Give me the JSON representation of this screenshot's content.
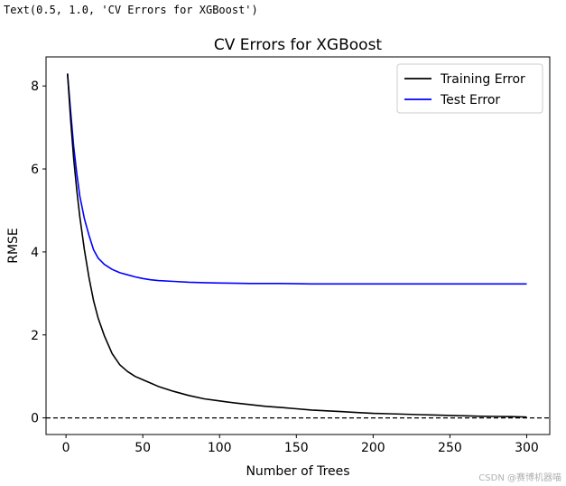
{
  "output_line": "Text(0.5, 1.0, 'CV Errors for XGBoost')",
  "watermark": "CSDN @赛博机器喵",
  "chart_data": {
    "type": "line",
    "title": "CV Errors for XGBoost",
    "xlabel": "Number of Trees",
    "ylabel": "RMSE",
    "xlim": [
      -13,
      315
    ],
    "ylim": [
      -0.4,
      8.7
    ],
    "xticks": [
      0,
      50,
      100,
      150,
      200,
      250,
      300
    ],
    "yticks": [
      0,
      2,
      4,
      6,
      8
    ],
    "grid": false,
    "legend_position": "top-right",
    "reference_line": {
      "y": 0,
      "style": "dashed",
      "color": "#000000"
    },
    "series": [
      {
        "name": "Training Error",
        "color": "#000000",
        "x": [
          1,
          3,
          5,
          7,
          9,
          12,
          15,
          18,
          21,
          25,
          30,
          35,
          40,
          45,
          50,
          55,
          60,
          70,
          80,
          90,
          100,
          110,
          120,
          130,
          140,
          150,
          160,
          170,
          180,
          190,
          200,
          210,
          220,
          230,
          240,
          250,
          260,
          270,
          280,
          290,
          300
        ],
        "y": [
          8.3,
          7.2,
          6.25,
          5.5,
          4.85,
          4.05,
          3.38,
          2.82,
          2.4,
          1.98,
          1.55,
          1.28,
          1.12,
          1.0,
          0.92,
          0.84,
          0.76,
          0.64,
          0.54,
          0.46,
          0.41,
          0.36,
          0.32,
          0.28,
          0.25,
          0.22,
          0.19,
          0.17,
          0.15,
          0.13,
          0.11,
          0.1,
          0.09,
          0.08,
          0.07,
          0.06,
          0.05,
          0.04,
          0.035,
          0.03,
          0.02
        ]
      },
      {
        "name": "Test Error",
        "color": "#0000ff",
        "x": [
          1,
          3,
          5,
          7,
          9,
          12,
          15,
          18,
          21,
          25,
          30,
          35,
          40,
          45,
          50,
          55,
          60,
          70,
          80,
          90,
          100,
          120,
          140,
          160,
          180,
          200,
          220,
          240,
          260,
          280,
          300
        ],
        "y": [
          8.3,
          7.4,
          6.55,
          5.9,
          5.35,
          4.8,
          4.4,
          4.05,
          3.85,
          3.7,
          3.58,
          3.5,
          3.45,
          3.4,
          3.36,
          3.33,
          3.31,
          3.29,
          3.27,
          3.26,
          3.25,
          3.24,
          3.24,
          3.23,
          3.23,
          3.23,
          3.23,
          3.23,
          3.23,
          3.23,
          3.23
        ]
      }
    ]
  }
}
